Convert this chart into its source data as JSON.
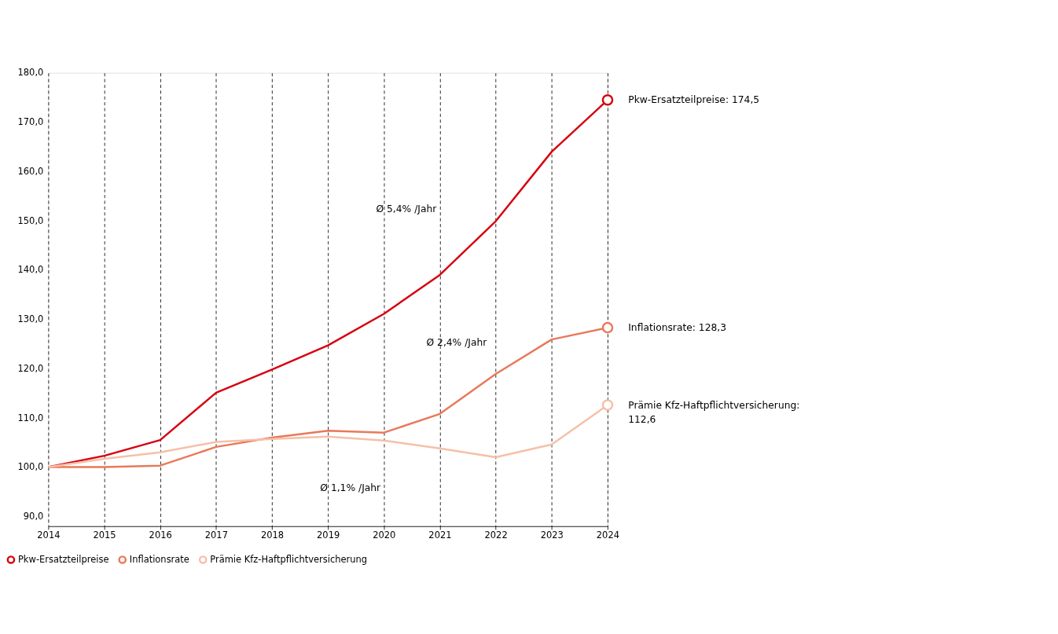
{
  "chart_data": {
    "type": "line",
    "x": [
      2014,
      2015,
      2016,
      2017,
      2018,
      2019,
      2020,
      2021,
      2022,
      2023,
      2024
    ],
    "xlim": [
      2014,
      2024
    ],
    "xticks": [
      2014,
      2015,
      2016,
      2017,
      2018,
      2019,
      2020,
      2021,
      2022,
      2023,
      2024
    ],
    "ylim": [
      88,
      180
    ],
    "yticks": [
      {
        "value": 90,
        "label": "90,0"
      },
      {
        "value": 100,
        "label": "100,0"
      },
      {
        "value": 110,
        "label": "110,0"
      },
      {
        "value": 120,
        "label": "120,0"
      },
      {
        "value": 130,
        "label": "130,0"
      },
      {
        "value": 140,
        "label": "140,0"
      },
      {
        "value": 150,
        "label": "150,0"
      },
      {
        "value": 160,
        "label": "160,0"
      },
      {
        "value": 170,
        "label": "170,0"
      },
      {
        "value": 180,
        "label": "180,0"
      }
    ],
    "series": [
      {
        "name": "Pkw-Ersatzteilpreise",
        "color": "#d7000f",
        "values": [
          100,
          102.3,
          105.5,
          115.1,
          119.8,
          124.7,
          131.1,
          139.0,
          149.9,
          164.0,
          174.5
        ],
        "value_labels": [
          null,
          null,
          null,
          null,
          null,
          null,
          null,
          null,
          null,
          null,
          "Pkw-Ersatzteilpreise: 174,5"
        ]
      },
      {
        "name": "Inflationsrate",
        "color": "#e8795a",
        "values": [
          100,
          100.0,
          100.3,
          104.1,
          106.0,
          107.4,
          107.0,
          110.8,
          118.9,
          125.9,
          128.3
        ],
        "value_labels": [
          null,
          null,
          null,
          null,
          null,
          null,
          null,
          null,
          null,
          null,
          "Inflationsrate: 128,3"
        ]
      },
      {
        "name": "Prämie Kfz-Haftpflichtversicherung",
        "color": "#f5c0a8",
        "values": [
          100,
          101.7,
          103.0,
          105.1,
          105.7,
          106.2,
          105.4,
          103.8,
          102.0,
          104.6,
          112.6
        ],
        "value_labels": [
          null,
          null,
          null,
          null,
          null,
          null,
          null,
          null,
          null,
          null,
          "Prämie Kfz-Haftpflichtversicherung: 112,6"
        ]
      }
    ],
    "annotations": [
      "Ø 5,4% /Jahr",
      "Ø 2,4% /Jahr",
      "Ø 1,1% /Jahr"
    ],
    "grid": "x",
    "line_style": "solid",
    "marker": "none",
    "legend": "bottom left"
  }
}
